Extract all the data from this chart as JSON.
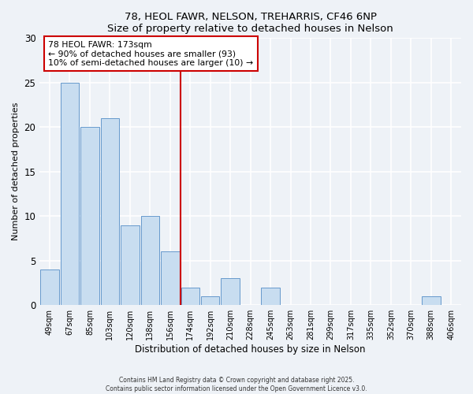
{
  "title": "78, HEOL FAWR, NELSON, TREHARRIS, CF46 6NP",
  "subtitle": "Size of property relative to detached houses in Nelson",
  "xlabel": "Distribution of detached houses by size in Nelson",
  "ylabel": "Number of detached properties",
  "bar_color": "#c8ddf0",
  "bar_edgecolor": "#6699cc",
  "background_color": "#eef2f7",
  "grid_color": "#ffffff",
  "categories": [
    "49sqm",
    "67sqm",
    "85sqm",
    "103sqm",
    "120sqm",
    "138sqm",
    "156sqm",
    "174sqm",
    "192sqm",
    "210sqm",
    "228sqm",
    "245sqm",
    "263sqm",
    "281sqm",
    "299sqm",
    "317sqm",
    "335sqm",
    "352sqm",
    "370sqm",
    "388sqm",
    "406sqm"
  ],
  "values": [
    4,
    25,
    20,
    21,
    9,
    10,
    6,
    2,
    1,
    3,
    0,
    2,
    0,
    0,
    0,
    0,
    0,
    0,
    0,
    1,
    0
  ],
  "vline_pos": 6.5,
  "vline_color": "#cc0000",
  "annotation_lines": [
    "78 HEOL FAWR: 173sqm",
    "← 90% of detached houses are smaller (93)",
    "10% of semi-detached houses are larger (10) →"
  ],
  "ylim": [
    0,
    30
  ],
  "yticks": [
    0,
    5,
    10,
    15,
    20,
    25,
    30
  ],
  "footer_line1": "Contains HM Land Registry data © Crown copyright and database right 2025.",
  "footer_line2": "Contains public sector information licensed under the Open Government Licence v3.0."
}
